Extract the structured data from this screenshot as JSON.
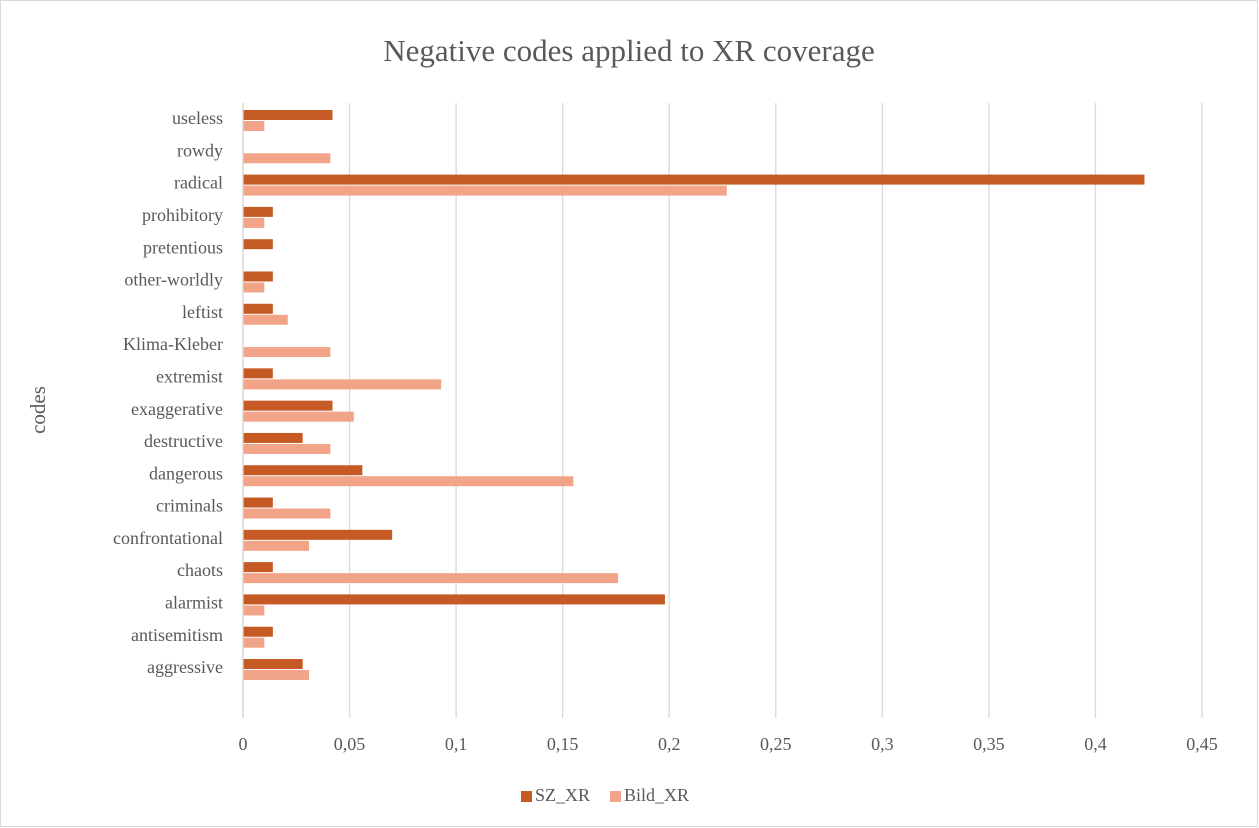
{
  "chart_data": {
    "type": "hbar",
    "title": "Negative codes applied to XR coverage",
    "ylabel": "codes",
    "categories": [
      "aggressive",
      "antisemitism",
      "alarmist",
      "chaots",
      "confrontational",
      "criminals",
      "dangerous",
      "destructive",
      "exaggerative",
      "extremist",
      "Klima-Kleber",
      "leftist",
      "other-worldly",
      "pretentious",
      "prohibitory",
      "radical",
      "rowdy",
      "useless"
    ],
    "series": [
      {
        "name": "SZ_XR",
        "color": "#c55a24",
        "values": [
          0.028,
          0.014,
          0.198,
          0.014,
          0.07,
          0.014,
          0.056,
          0.028,
          0.042,
          0.014,
          0,
          0.014,
          0.014,
          0.014,
          0.014,
          0.423,
          0,
          0.042
        ]
      },
      {
        "name": "Bild_XR",
        "color": "#f1a488",
        "values": [
          0.031,
          0.01,
          0.01,
          0.176,
          0.031,
          0.041,
          0.155,
          0.041,
          0.052,
          0.093,
          0.041,
          0.021,
          0.01,
          0,
          0.01,
          0.227,
          0.041,
          0.01
        ]
      }
    ],
    "xlim": [
      0,
      0.45
    ],
    "xticks": [
      0,
      {
        "value": 0.05,
        "label": "0,05"
      },
      {
        "value": 0.1,
        "label": "0,1"
      },
      {
        "value": 0.15,
        "label": "0,15"
      },
      {
        "value": 0.2,
        "label": "0,2"
      },
      {
        "value": 0.25,
        "label": "0,25"
      },
      {
        "value": 0.3,
        "label": "0,3"
      },
      {
        "value": 0.35,
        "label": "0,35"
      },
      {
        "value": 0.4,
        "label": "0,4"
      },
      {
        "value": 0.45,
        "label": "0,45"
      }
    ],
    "grid": true,
    "legend": "bottom"
  }
}
